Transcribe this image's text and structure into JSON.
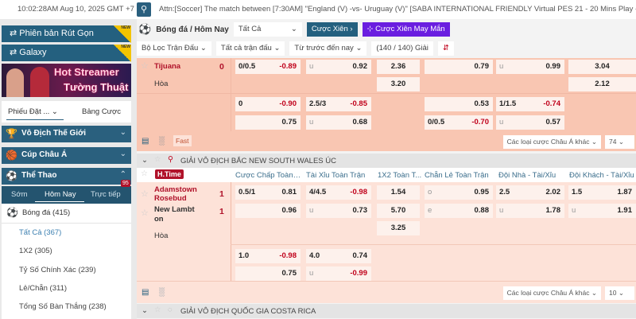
{
  "topbar": {
    "clock": "10:02:28AM Aug 10, 2025 GMT +7",
    "search_icon": "search-icon",
    "ticker": "Attn:[Soccer] The match between [7:30AM] \"England (V) -vs- Uruguay (V)\" [SABA INTERNATIONAL FRIENDLY Virtual PES 21 - 20 Mins Play - 9/8]"
  },
  "sidebar": {
    "compact": "Phiên bản Rút Gọn",
    "galaxy": "Galaxy",
    "new_tag": "NEW",
    "banner": {
      "line1": "Hot Streamer",
      "line2": "Tường Thuật"
    },
    "slip_tab": "Phiếu Đặt ...",
    "board_tab": "Bảng Cược",
    "categories": [
      {
        "label": "Vô Địch Thế Giới",
        "icon": "trophy-icon"
      },
      {
        "label": "Cúp Châu Á",
        "icon": "basketball-icon"
      },
      {
        "label": "Thể Thao",
        "icon": "soccer-ball-icon"
      }
    ],
    "subtabs": [
      "Sớm",
      "Hôm Nay",
      "Trực tiếp"
    ],
    "live_count": "95",
    "sport": "Bóng đá",
    "sport_count": "(415)",
    "items": [
      "Tất Cả (367)",
      "1X2 (305)",
      "Tỷ Số Chính Xác (239)",
      "Lẻ/Chẵn (311)",
      "Tổng Số Bàn Thắng (238)"
    ]
  },
  "main": {
    "title": "Bóng đá / Hôm Nay",
    "filter_select": "Tất Cả",
    "parlay": "Cược Xiên",
    "lucky_parlay": "Cược Xiên May Mắn",
    "filters": [
      "Bộ Lọc Trận Đấu",
      "Tất cả trận đấu",
      "Từ trước đến nay",
      "(140 / 140) Giải"
    ],
    "more_bets": "Các loại cược Châu Á khác",
    "fast": "Fast",
    "accent": "#24607f",
    "negative_color": "#c0001a"
  },
  "match1": {
    "team": "Tijuana",
    "score": "0",
    "draw": "Hòa",
    "count": "74",
    "lines": [
      [
        [
          "0/0.5",
          "-0.89"
        ],
        [
          "u",
          "0.92"
        ],
        "2.36",
        [
          "",
          "0.79"
        ],
        [
          "u",
          "0.99"
        ],
        "3.04"
      ],
      [
        null,
        null,
        "3.20",
        null,
        null,
        "2.12"
      ],
      [
        [
          "0",
          "-0.90"
        ],
        [
          "2.5/3",
          "-0.85"
        ],
        null,
        [
          "",
          "0.53"
        ],
        [
          "1/1.5",
          "-0.74"
        ],
        null
      ],
      [
        [
          "",
          "0.75"
        ],
        [
          "u",
          "0.68"
        ],
        null,
        [
          "0/0.5",
          "-0.70"
        ],
        [
          "u",
          "0.57"
        ],
        null
      ]
    ]
  },
  "league1": {
    "name": "GIẢI VÔ ĐỊCH BẮC NEW SOUTH WALES ÚC",
    "period": "H.Time",
    "columns": [
      "Cược Chấp Toàn T...",
      "Tài Xỉu Toàn Trận",
      "1X2 Toàn T...",
      "Chẵn Lẻ Toàn Trận",
      "Đội Nhà - Tài/Xỉu",
      "Đội Khách - Tài/Xỉu"
    ]
  },
  "match2": {
    "home": "Adamstown Rosebud",
    "away": "New Lambton",
    "home_score": "1",
    "away_score": "1",
    "draw": "Hòa",
    "count": "10",
    "lines": [
      [
        [
          "0.5/1",
          "0.81"
        ],
        [
          "4/4.5",
          "-0.98"
        ],
        "1.54",
        [
          "o",
          "0.95"
        ],
        [
          "2.5",
          "2.02"
        ],
        [
          "1.5",
          "1.87"
        ]
      ],
      [
        [
          "",
          "0.96"
        ],
        [
          "u",
          "0.73"
        ],
        "5.70",
        [
          "e",
          "0.88"
        ],
        [
          "u",
          "1.78"
        ],
        [
          "u",
          "1.91"
        ]
      ],
      [
        null,
        null,
        "3.25",
        null,
        null,
        null
      ],
      [
        [
          "1.0",
          "-0.98"
        ],
        [
          "4.0",
          "0.74"
        ],
        null,
        null,
        null,
        null
      ],
      [
        [
          "",
          "0.75"
        ],
        [
          "u",
          "-0.99"
        ],
        null,
        null,
        null,
        null
      ]
    ]
  },
  "league2": {
    "name": "GIẢI VÔ ĐỊCH QUỐC GIA COSTA RICA"
  }
}
